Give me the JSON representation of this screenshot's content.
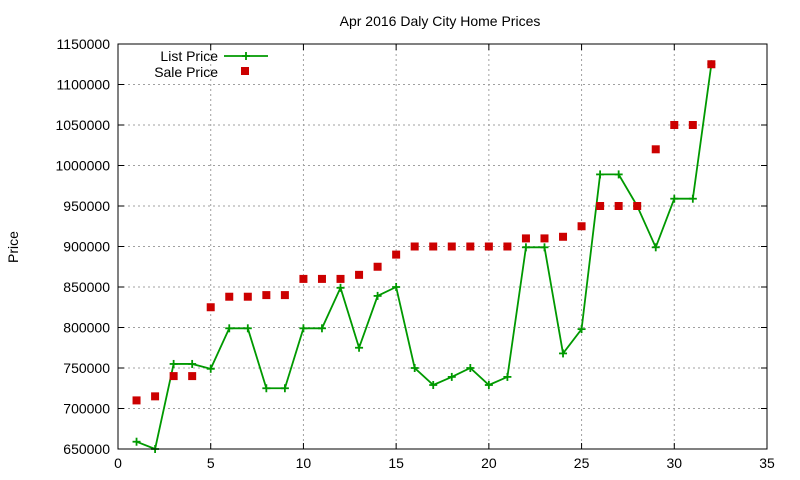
{
  "chart_data": {
    "type": "line",
    "title": "Apr 2016 Daly City Home Prices",
    "xlabel": "",
    "ylabel": "Price",
    "xlim": [
      0,
      35
    ],
    "ylim": [
      650000,
      1150000
    ],
    "x_ticks": [
      0,
      5,
      10,
      15,
      20,
      25,
      30,
      35
    ],
    "y_ticks": [
      650000,
      700000,
      750000,
      800000,
      850000,
      900000,
      950000,
      1000000,
      1050000,
      1100000,
      1150000
    ],
    "grid": true,
    "legend_position": "top-left",
    "series": [
      {
        "name": "List Price",
        "style": "line+cross",
        "color": "#009900",
        "x": [
          1,
          2,
          3,
          4,
          5,
          6,
          7,
          8,
          9,
          10,
          11,
          12,
          13,
          14,
          15,
          16,
          17,
          18,
          19,
          20,
          21,
          22,
          23,
          24,
          25,
          26,
          27,
          28,
          29,
          30,
          31,
          32
        ],
        "y": [
          659000,
          650000,
          755000,
          755000,
          749000,
          799000,
          799000,
          725000,
          725000,
          799000,
          799000,
          849000,
          775000,
          839000,
          850000,
          750000,
          729000,
          739000,
          750000,
          729000,
          739000,
          899000,
          899000,
          768000,
          798000,
          989000,
          989000,
          950000,
          899000,
          959000,
          959000,
          1125000
        ]
      },
      {
        "name": "Sale Price",
        "style": "square",
        "color": "#cc0000",
        "x": [
          1,
          2,
          3,
          4,
          5,
          6,
          7,
          8,
          9,
          10,
          11,
          12,
          13,
          14,
          15,
          16,
          17,
          18,
          19,
          20,
          21,
          22,
          23,
          24,
          25,
          26,
          27,
          28,
          29,
          30,
          31,
          32
        ],
        "y": [
          710000,
          715000,
          740000,
          740000,
          825000,
          838000,
          838000,
          840000,
          840000,
          860000,
          860000,
          860000,
          865000,
          875000,
          890000,
          900000,
          900000,
          900000,
          900000,
          900000,
          900000,
          910000,
          910000,
          912000,
          925000,
          950000,
          950000,
          950000,
          1020000,
          1050000,
          1050000,
          1125000
        ]
      }
    ]
  }
}
